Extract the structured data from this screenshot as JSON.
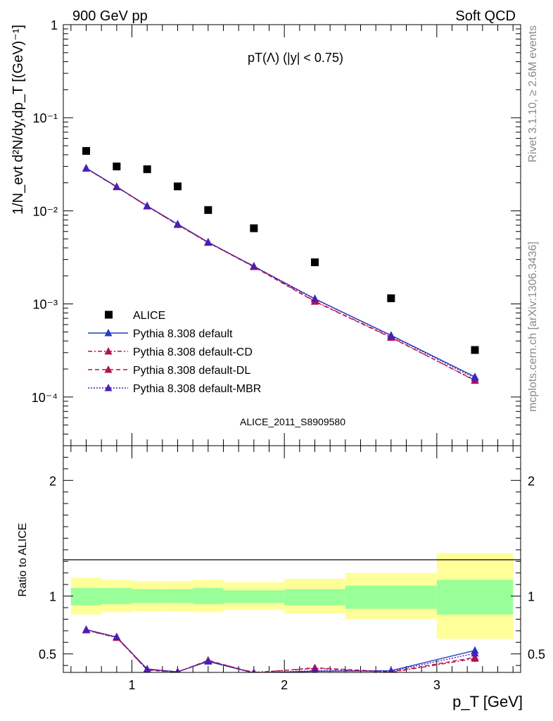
{
  "header": {
    "left": "900 GeV pp",
    "right": "Soft QCD"
  },
  "side_labels": {
    "rivet": "Rivet 3.1.10, ≥ 2.6M events",
    "mcplots": "mcplots.cern.ch [arXiv:1306.3436]"
  },
  "chart_data": [
    {
      "type": "scatter",
      "title": "pT(Λ) (|y| < 0.75)",
      "ylabel": "1/N_evt d²N/dy,dp_T [(GeV)⁻¹]",
      "xlabel": "",
      "watermark": "ALICE_2011_S8909580",
      "xlim": [
        0.55,
        3.55
      ],
      "ylim": [
        3e-05,
        1
      ],
      "yscale": "log",
      "grid": false,
      "legend_position": "bottom-left",
      "ytick_labels": [
        "1",
        "10⁻¹",
        "10⁻²",
        "10⁻³",
        "10⁻⁴"
      ],
      "x": [
        0.7,
        0.9,
        1.1,
        1.3,
        1.5,
        1.8,
        2.2,
        2.7,
        3.25
      ],
      "series": [
        {
          "name": "ALICE",
          "marker": "square",
          "color": "#000000",
          "line": "none",
          "values": [
            0.044,
            0.03,
            0.028,
            0.0183,
            0.0102,
            0.0065,
            0.0028,
            0.00115,
            0.00032
          ]
        },
        {
          "name": "Pythia 8.308 default",
          "marker": "triangle",
          "color": "#1f3fbf",
          "line": "solid",
          "values": [
            0.0288,
            0.0182,
            0.0113,
            0.0072,
            0.0046,
            0.00252,
            0.00113,
            0.00046,
            0.000165
          ]
        },
        {
          "name": "Pythia 8.308 default-CD",
          "marker": "triangle",
          "color": "#b3124c",
          "line": "dashdot",
          "values": [
            0.0285,
            0.018,
            0.0112,
            0.0071,
            0.00455,
            0.00255,
            0.00107,
            0.00044,
            0.00015
          ]
        },
        {
          "name": "Pythia 8.308 default-DL",
          "marker": "triangle",
          "color": "#b3124c",
          "line": "dashed",
          "values": [
            0.0286,
            0.0181,
            0.0112,
            0.0071,
            0.00457,
            0.0025,
            0.00106,
            0.000435,
            0.000152
          ]
        },
        {
          "name": "Pythia 8.308 default-MBR",
          "marker": "triangle",
          "color": "#4a1fb8",
          "line": "dotted",
          "values": [
            0.0287,
            0.0181,
            0.0113,
            0.0072,
            0.00462,
            0.00254,
            0.00114,
            0.000455,
            0.00016
          ]
        }
      ]
    },
    {
      "type": "line",
      "ylabel": "Ratio to ALICE",
      "xlabel": "p_T [GeV]",
      "xlim": [
        0.55,
        3.55
      ],
      "ylim": [
        0.34,
        2.3
      ],
      "grid": false,
      "xtick_labels": [
        "1",
        "2",
        "3"
      ],
      "ytick_labels": [
        "0.5",
        "1",
        "2"
      ],
      "reference_line": 1,
      "bins": [
        [
          0.6,
          0.8
        ],
        [
          0.8,
          1.0
        ],
        [
          1.0,
          1.2
        ],
        [
          1.2,
          1.4
        ],
        [
          1.4,
          1.6
        ],
        [
          1.6,
          2.0
        ],
        [
          2.0,
          2.4
        ],
        [
          2.4,
          3.0
        ],
        [
          3.0,
          3.5
        ]
      ],
      "band_inner": [
        [
          0.92,
          1.07
        ],
        [
          0.93,
          1.07
        ],
        [
          0.94,
          1.06
        ],
        [
          0.94,
          1.06
        ],
        [
          0.93,
          1.07
        ],
        [
          0.94,
          1.05
        ],
        [
          0.92,
          1.06
        ],
        [
          0.89,
          1.09
        ],
        [
          0.84,
          1.14
        ]
      ],
      "band_outer": [
        [
          0.84,
          1.16
        ],
        [
          0.86,
          1.14
        ],
        [
          0.87,
          1.13
        ],
        [
          0.87,
          1.13
        ],
        [
          0.86,
          1.14
        ],
        [
          0.88,
          1.12
        ],
        [
          0.85,
          1.15
        ],
        [
          0.8,
          1.2
        ],
        [
          0.63,
          1.37
        ]
      ],
      "x": [
        0.7,
        0.9,
        1.1,
        1.3,
        1.5,
        1.8,
        2.2,
        2.7,
        3.25
      ],
      "series": [
        {
          "name": "Pythia 8.308 default",
          "color": "#1f3fbf",
          "line": "solid",
          "values": [
            0.71,
            0.645,
            0.37,
            0.345,
            0.435,
            0.335,
            0.35,
            0.355,
            0.53
          ],
          "errors": [
            0.01,
            0.01,
            0.01,
            0.01,
            0.01,
            0.01,
            0.01,
            0.015,
            0.03
          ]
        },
        {
          "name": "Pythia 8.308 default-CD",
          "color": "#b3124c",
          "line": "dashdot",
          "values": [
            0.705,
            0.64,
            0.365,
            0.345,
            0.44,
            0.34,
            0.375,
            0.34,
            0.46
          ],
          "errors": [
            0.01,
            0.01,
            0.01,
            0.01,
            0.01,
            0.01,
            0.01,
            0.015,
            0.03
          ]
        },
        {
          "name": "Pythia 8.308 default-DL",
          "color": "#b3124c",
          "line": "dashed",
          "values": [
            0.705,
            0.645,
            0.36,
            0.342,
            0.445,
            0.335,
            0.38,
            0.345,
            0.47
          ],
          "errors": [
            0.01,
            0.01,
            0.01,
            0.01,
            0.01,
            0.01,
            0.01,
            0.015,
            0.03
          ]
        },
        {
          "name": "Pythia 8.308 default-MBR",
          "color": "#4a1fb8",
          "line": "dotted",
          "values": [
            0.71,
            0.648,
            0.365,
            0.345,
            0.44,
            0.335,
            0.355,
            0.35,
            0.505
          ],
          "errors": [
            0.01,
            0.01,
            0.01,
            0.01,
            0.01,
            0.01,
            0.01,
            0.015,
            0.03
          ]
        }
      ]
    }
  ]
}
